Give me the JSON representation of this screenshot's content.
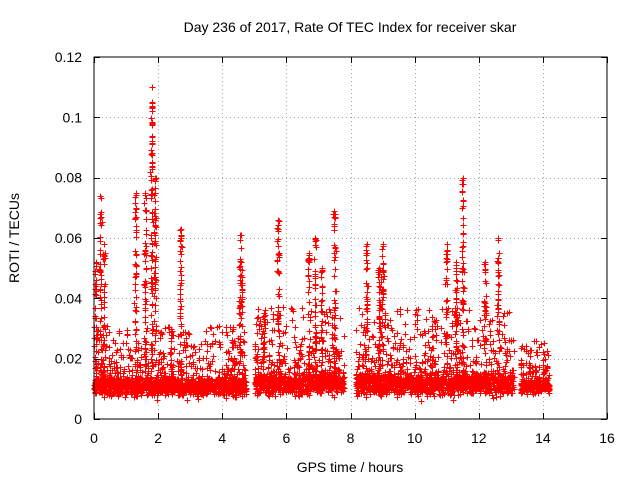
{
  "chart_data": {
    "type": "scatter",
    "title": "Day 236 of 2017, Rate Of TEC Index for receiver skar",
    "xlabel": "GPS time / hours",
    "ylabel": "ROTI / TECUs",
    "xlim": [
      0,
      16
    ],
    "ylim": [
      0,
      0.12
    ],
    "xticks": [
      0,
      2,
      4,
      6,
      8,
      10,
      12,
      14,
      16
    ],
    "xtick_labels": [
      "0",
      "2",
      "4",
      "6",
      "8",
      "10",
      "12",
      "14",
      "16"
    ],
    "yticks": [
      0,
      0.02,
      0.04,
      0.06,
      0.08,
      0.1,
      0.12
    ],
    "ytick_labels": [
      "0",
      "0.02",
      "0.04",
      "0.06",
      "0.08",
      "0.1",
      "0.12"
    ],
    "grid": true,
    "marker": "plus",
    "color": "#ff0000",
    "data_gaps_hours": [
      [
        4.75,
        5.0
      ],
      [
        7.8,
        8.15
      ],
      [
        13.1,
        13.3
      ]
    ],
    "series": [
      {
        "name": "ROTI",
        "baseline_segments": [
          {
            "x_range": [
              0.0,
              4.75
            ],
            "typical": 0.011,
            "spread": 0.004
          },
          {
            "x_range": [
              5.0,
              7.8
            ],
            "typical": 0.012,
            "spread": 0.005
          },
          {
            "x_range": [
              8.15,
              13.1
            ],
            "typical": 0.012,
            "spread": 0.005
          },
          {
            "x_range": [
              13.3,
              14.2
            ],
            "typical": 0.011,
            "spread": 0.003
          }
        ],
        "spikes": [
          {
            "x": 0.05,
            "peak": 0.052
          },
          {
            "x": 0.2,
            "peak": 0.074
          },
          {
            "x": 0.3,
            "peak": 0.058
          },
          {
            "x": 1.3,
            "peak": 0.075
          },
          {
            "x": 1.6,
            "peak": 0.075
          },
          {
            "x": 1.8,
            "peak": 0.11
          },
          {
            "x": 1.9,
            "peak": 0.08
          },
          {
            "x": 2.4,
            "peak": 0.03
          },
          {
            "x": 2.7,
            "peak": 0.063
          },
          {
            "x": 4.55,
            "peak": 0.061
          },
          {
            "x": 4.6,
            "peak": 0.052
          },
          {
            "x": 5.3,
            "peak": 0.035
          },
          {
            "x": 5.75,
            "peak": 0.066
          },
          {
            "x": 6.7,
            "peak": 0.055
          },
          {
            "x": 6.9,
            "peak": 0.06
          },
          {
            "x": 7.1,
            "peak": 0.05
          },
          {
            "x": 7.5,
            "peak": 0.069
          },
          {
            "x": 8.5,
            "peak": 0.058
          },
          {
            "x": 8.9,
            "peak": 0.05
          },
          {
            "x": 9.0,
            "peak": 0.058
          },
          {
            "x": 11.0,
            "peak": 0.058
          },
          {
            "x": 11.3,
            "peak": 0.052
          },
          {
            "x": 11.5,
            "peak": 0.08
          },
          {
            "x": 12.2,
            "peak": 0.052
          },
          {
            "x": 12.6,
            "peak": 0.06
          },
          {
            "x": 13.6,
            "peak": 0.018
          },
          {
            "x": 14.0,
            "peak": 0.018
          }
        ]
      }
    ]
  }
}
